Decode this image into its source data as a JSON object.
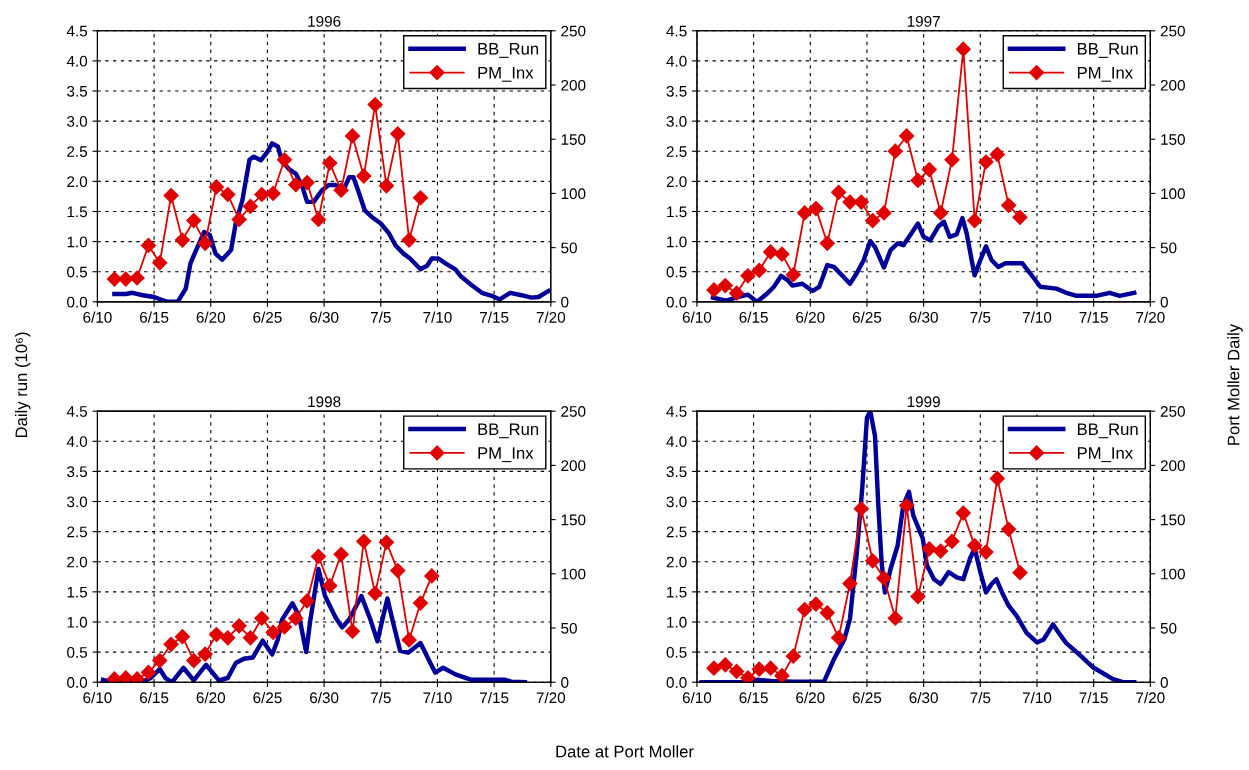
{
  "chart_data": [
    {
      "type": "line",
      "title": "1996",
      "ylabel": "Daily run (10⁶)",
      "xlim": [
        "1996-06-10",
        "1996-07-20"
      ],
      "xticks": [
        {
          "value": "1996-06-10",
          "label": "6/10"
        },
        {
          "value": "1996-06-15",
          "label": "6/15"
        },
        {
          "value": "1996-06-20",
          "label": "6/20"
        },
        {
          "value": "1996-06-25",
          "label": "6/25"
        },
        {
          "value": "1996-06-30",
          "label": "6/30"
        },
        {
          "value": "1996-07-05",
          "label": "7/5"
        },
        {
          "value": "1996-07-10",
          "label": "7/10"
        },
        {
          "value": "1996-07-15",
          "label": "7/15"
        },
        {
          "value": "1996-07-20",
          "label": "7/20"
        }
      ],
      "ylim": [
        0,
        4.5
      ],
      "yticks": [
        {
          "value": 0,
          "label": "0.0"
        },
        {
          "value": 0.5,
          "label": "0.5"
        },
        {
          "value": 1,
          "label": "1.0"
        },
        {
          "value": 1.5,
          "label": "1.5"
        },
        {
          "value": 2,
          "label": "2.0"
        },
        {
          "value": 2.5,
          "label": "2.5"
        },
        {
          "value": 3,
          "label": "3.0"
        },
        {
          "value": 3.5,
          "label": "3.5"
        },
        {
          "value": 4,
          "label": "4.0"
        },
        {
          "value": 4.5,
          "label": "4.5"
        }
      ],
      "y2lim": [
        0,
        250
      ],
      "y2ticks": [
        0,
        50,
        100,
        150,
        200,
        250
      ],
      "grid": true,
      "legend": "top right",
      "series": [
        {
          "name": "BB_Run",
          "color": "#000099",
          "marker": "none",
          "x": [
            "1996-06-11T12:00",
            "1996-06-12T12:00",
            "1996-06-13T02:00",
            "1996-06-14",
            "1996-06-15",
            "1996-06-15T17:00",
            "1996-06-16T05:00",
            "1996-06-17T02:00",
            "1996-06-17T19:00",
            "1996-06-18T05:00",
            "1996-06-18T17:00",
            "1996-06-19T10:00",
            "1996-06-19T22:00",
            "1996-06-20T10:00",
            "1996-06-21",
            "1996-06-21T19:00",
            "1996-06-22T05:00",
            "1996-06-22T19:00",
            "1996-06-23T10:00",
            "1996-06-23T19:00",
            "1996-06-24T10:00",
            "1996-06-25",
            "1996-06-25T10:00",
            "1996-06-25T22:00",
            "1996-06-26T07:00",
            "1996-06-26T22:00",
            "1996-06-27T12:00",
            "1996-06-28T02:00",
            "1996-06-28T12:00",
            "1996-06-29T02:00",
            "1996-06-29T19:00",
            "1996-06-30T10:00",
            "1996-07-01",
            "1996-07-01T17:00",
            "1996-07-02T05:00",
            "1996-07-02T14:00",
            "1996-07-03",
            "1996-07-03T14:00",
            "1996-07-04T05:00",
            "1996-07-05",
            "1996-07-05T17:00",
            "1996-07-06T07:00",
            "1996-07-07",
            "1996-07-07T14:00",
            "1996-07-08T12:00",
            "1996-07-09T02:00",
            "1996-07-09T12:00",
            "1996-07-10T02:00",
            "1996-07-10T17:00",
            "1996-07-11T14:00",
            "1996-07-12T02:00",
            "1996-07-13",
            "1996-07-13T22:00",
            "1996-07-14T19:00",
            "1996-07-15T12:00",
            "1996-07-16T10:00",
            "1996-07-17T10:00",
            "1996-07-18T07:00",
            "1996-07-18T22:00",
            "1996-07-19T19:00"
          ],
          "values": [
            0.13,
            0.13,
            0.15,
            0.11,
            0.08,
            0.03,
            0.0,
            0.0,
            0.22,
            0.64,
            0.86,
            1.16,
            1.11,
            0.8,
            0.7,
            0.86,
            1.31,
            1.69,
            2.36,
            2.41,
            2.35,
            2.49,
            2.63,
            2.58,
            2.33,
            2.2,
            2.13,
            1.91,
            1.66,
            1.66,
            1.85,
            1.94,
            1.94,
            1.85,
            2.07,
            2.07,
            1.85,
            1.52,
            1.41,
            1.3,
            1.14,
            0.94,
            0.8,
            0.72,
            0.54,
            0.6,
            0.72,
            0.72,
            0.64,
            0.54,
            0.42,
            0.28,
            0.15,
            0.1,
            0.04,
            0.15,
            0.11,
            0.07,
            0.08,
            0.18
          ]
        },
        {
          "name": "PM_Inx",
          "color": "#e00000",
          "marker": "diamond",
          "axis": "y2",
          "x": [
            "1996-06-11T12:00",
            "1996-06-12T12:00",
            "1996-06-13T12:00",
            "1996-06-14T12:00",
            "1996-06-15T12:00",
            "1996-06-16T12:00",
            "1996-06-17T12:00",
            "1996-06-18T12:00",
            "1996-06-19T12:00",
            "1996-06-20T12:00",
            "1996-06-21T12:00",
            "1996-06-22T12:00",
            "1996-06-23T12:00",
            "1996-06-24T12:00",
            "1996-06-25T12:00",
            "1996-06-26T12:00",
            "1996-06-27T12:00",
            "1996-06-28T12:00",
            "1996-06-29T12:00",
            "1996-06-30T12:00",
            "1996-07-01T12:00",
            "1996-07-02T12:00",
            "1996-07-03T12:00",
            "1996-07-04T12:00",
            "1996-07-05T12:00",
            "1996-07-06T12:00",
            "1996-07-07T12:00",
            "1996-07-08T12:00"
          ],
          "values": [
            21,
            21,
            22,
            52,
            36,
            98,
            57,
            75,
            54,
            106,
            99,
            76,
            88,
            99,
            100,
            131,
            108,
            110,
            76,
            128,
            103,
            153,
            116,
            182,
            107,
            155,
            57,
            96
          ]
        }
      ]
    },
    {
      "type": "line",
      "title": "1997",
      "y2label": "Port Moller Daily",
      "xlim": [
        "1997-06-10",
        "1997-07-20"
      ],
      "xticks": [
        {
          "value": "1997-06-10",
          "label": "6/10"
        },
        {
          "value": "1997-06-15",
          "label": "6/15"
        },
        {
          "value": "1997-06-20",
          "label": "6/20"
        },
        {
          "value": "1997-06-25",
          "label": "6/25"
        },
        {
          "value": "1997-06-30",
          "label": "6/30"
        },
        {
          "value": "1997-07-05",
          "label": "7/5"
        },
        {
          "value": "1997-07-10",
          "label": "7/10"
        },
        {
          "value": "1997-07-15",
          "label": "7/15"
        },
        {
          "value": "1997-07-20",
          "label": "7/20"
        }
      ],
      "ylim": [
        0,
        4.5
      ],
      "yticks": [
        {
          "value": 0,
          "label": "0.0"
        },
        {
          "value": 0.5,
          "label": "0.5"
        },
        {
          "value": 1,
          "label": "1.0"
        },
        {
          "value": 1.5,
          "label": "1.5"
        },
        {
          "value": 2,
          "label": "2.0"
        },
        {
          "value": 2.5,
          "label": "2.5"
        },
        {
          "value": 3,
          "label": "3.0"
        },
        {
          "value": 3.5,
          "label": "3.5"
        },
        {
          "value": 4,
          "label": "4.0"
        },
        {
          "value": 4.5,
          "label": "4.5"
        }
      ],
      "y2lim": [
        0,
        250
      ],
      "y2ticks": [
        0,
        50,
        100,
        150,
        200,
        250
      ],
      "grid": true,
      "legend": "top right",
      "series": [
        {
          "name": "BB_Run",
          "color": "#000099",
          "marker": "none",
          "x": [
            "1997-06-11T10:00",
            "1997-06-12T14:00",
            "1997-06-13T14:00",
            "1997-06-14T12:00",
            "1997-06-15T07:00",
            "1997-06-16T05:00",
            "1997-06-16T19:00",
            "1997-06-17T10:00",
            "1997-06-18",
            "1997-06-18T10:00",
            "1997-06-19T07:00",
            "1997-06-20T05:00",
            "1997-06-20T19:00",
            "1997-06-21T12:00",
            "1997-06-22T02:00",
            "1997-06-22T19:00",
            "1997-06-23T12:00",
            "1997-06-24T02:00",
            "1997-06-24T17:00",
            "1997-06-25T07:00",
            "1997-06-25T17:00",
            "1997-06-26T12:00",
            "1997-06-27T02:00",
            "1997-06-27T17:00",
            "1997-06-28T05:00",
            "1997-06-29",
            "1997-06-29T12:00",
            "1997-06-30",
            "1997-06-30T14:00",
            "1997-07-01T07:00",
            "1997-07-01T19:00",
            "1997-07-02T07:00",
            "1997-07-02T22:00",
            "1997-07-03T10:00",
            "1997-07-03T19:00",
            "1997-07-04T07:00",
            "1997-07-04T12:00",
            "1997-07-05",
            "1997-07-05T12:00",
            "1997-07-06",
            "1997-07-06T14:00",
            "1997-07-07T05:00",
            "1997-07-08T17:00",
            "1997-07-09T10:00",
            "1997-07-10T07:00",
            "1997-07-11T17:00",
            "1997-07-12T14:00",
            "1997-07-13T12:00",
            "1997-07-15T05:00",
            "1997-07-16T10:00",
            "1997-07-17T07:00",
            "1997-07-18T14:00"
          ],
          "values": [
            0.07,
            0.02,
            0.08,
            0.12,
            0.0,
            0.14,
            0.25,
            0.43,
            0.36,
            0.27,
            0.3,
            0.18,
            0.25,
            0.61,
            0.58,
            0.44,
            0.3,
            0.47,
            0.69,
            1.01,
            0.91,
            0.57,
            0.86,
            0.97,
            0.94,
            1.16,
            1.3,
            1.08,
            1.02,
            1.25,
            1.33,
            1.08,
            1.12,
            1.39,
            1.14,
            0.64,
            0.44,
            0.69,
            0.92,
            0.69,
            0.58,
            0.64,
            0.64,
            0.47,
            0.25,
            0.22,
            0.15,
            0.1,
            0.1,
            0.15,
            0.1,
            0.15
          ]
        },
        {
          "name": "PM_Inx",
          "color": "#e00000",
          "marker": "diamond",
          "axis": "y2",
          "x": [
            "1997-06-11T12:00",
            "1997-06-12T12:00",
            "1997-06-13T12:00",
            "1997-06-14T12:00",
            "1997-06-15T12:00",
            "1997-06-16T12:00",
            "1997-06-17T12:00",
            "1997-06-18T12:00",
            "1997-06-19T12:00",
            "1997-06-20T12:00",
            "1997-06-21T12:00",
            "1997-06-22T12:00",
            "1997-06-23T12:00",
            "1997-06-24T12:00",
            "1997-06-25T12:00",
            "1997-06-26T12:00",
            "1997-06-27T12:00",
            "1997-06-28T12:00",
            "1997-06-29T12:00",
            "1997-06-30T12:00",
            "1997-07-01T12:00",
            "1997-07-02T12:00",
            "1997-07-03T12:00",
            "1997-07-04T12:00",
            "1997-07-05T12:00",
            "1997-07-06T12:00",
            "1997-07-07T12:00",
            "1997-07-08T12:00"
          ],
          "values": [
            11,
            15,
            8,
            24,
            29,
            46,
            44,
            25,
            82,
            86,
            54,
            101,
            92,
            92,
            75,
            82,
            139,
            153,
            112,
            122,
            82,
            131,
            233,
            75,
            129,
            136,
            89,
            78
          ]
        }
      ]
    },
    {
      "type": "line",
      "title": "1998",
      "xlim": [
        "1998-06-10",
        "1998-07-20"
      ],
      "xticks": [
        {
          "value": "1998-06-10",
          "label": "6/10"
        },
        {
          "value": "1998-06-15",
          "label": "6/15"
        },
        {
          "value": "1998-06-20",
          "label": "6/20"
        },
        {
          "value": "1998-06-25",
          "label": "6/25"
        },
        {
          "value": "1998-06-30",
          "label": "6/30"
        },
        {
          "value": "1998-07-05",
          "label": "7/5"
        },
        {
          "value": "1998-07-10",
          "label": "7/10"
        },
        {
          "value": "1998-07-15",
          "label": "7/15"
        },
        {
          "value": "1998-07-20",
          "label": "7/20"
        }
      ],
      "ylim": [
        0,
        4.5
      ],
      "yticks": [
        {
          "value": 0,
          "label": "0.0"
        },
        {
          "value": 0.5,
          "label": "0.5"
        },
        {
          "value": 1,
          "label": "1.0"
        },
        {
          "value": 1.5,
          "label": "1.5"
        },
        {
          "value": 2,
          "label": "2.0"
        },
        {
          "value": 2.5,
          "label": "2.5"
        },
        {
          "value": 3,
          "label": "3.0"
        },
        {
          "value": 3.5,
          "label": "3.5"
        },
        {
          "value": 4,
          "label": "4.0"
        },
        {
          "value": 4.5,
          "label": "4.5"
        }
      ],
      "y2lim": [
        0,
        250
      ],
      "y2ticks": [
        0,
        50,
        100,
        150,
        200,
        250
      ],
      "grid": true,
      "legend": "top right",
      "series": [
        {
          "name": "BB_Run",
          "color": "#000099",
          "marker": "none",
          "x": [
            "1998-06-10T12:00",
            "1998-06-11T07:00",
            "1998-06-12T19:00",
            "1998-06-14",
            "1998-06-14T17:00",
            "1998-06-15T12:00",
            "1998-06-16",
            "1998-06-16T14:00",
            "1998-06-17T14:00",
            "1998-06-18T12:00",
            "1998-06-19T14:00",
            "1998-06-20T17:00",
            "1998-06-21T12:00",
            "1998-06-22T05:00",
            "1998-06-22T22:00",
            "1998-06-23T17:00",
            "1998-06-24T14:00",
            "1998-06-25T10:00",
            "1998-06-25T22:00",
            "1998-06-26T07:00",
            "1998-06-27T05:00",
            "1998-06-27T19:00",
            "1998-06-28T10:00",
            "1998-06-28T19:00",
            "1998-06-29T12:00",
            "1998-06-30T02:00",
            "1998-07-01",
            "1998-07-01T14:00",
            "1998-07-02T05:00",
            "1998-07-03T07:00",
            "1998-07-04T02:00",
            "1998-07-04T17:00",
            "1998-07-05T02:00",
            "1998-07-05T14:00",
            "1998-07-06T02:00",
            "1998-07-06T17:00",
            "1998-07-07T10:00",
            "1998-07-08T12:00",
            "1998-07-09T05:00",
            "1998-07-09T19:00",
            "1998-07-10T12:00",
            "1998-07-11T14:00",
            "1998-07-13",
            "1998-07-16",
            "1998-07-16T12:00",
            "1998-07-17T17:00"
          ],
          "values": [
            0.04,
            0.0,
            0.0,
            0.01,
            0.07,
            0.22,
            0.07,
            0.0,
            0.24,
            0.03,
            0.29,
            0.03,
            0.07,
            0.32,
            0.39,
            0.41,
            0.69,
            0.46,
            0.71,
            1.04,
            1.31,
            1.1,
            0.5,
            1.04,
            1.88,
            1.43,
            1.08,
            0.91,
            1.04,
            1.43,
            1.04,
            0.68,
            0.99,
            1.39,
            0.99,
            0.52,
            0.49,
            0.65,
            0.38,
            0.16,
            0.24,
            0.13,
            0.04,
            0.04,
            0.01,
            0.0
          ]
        },
        {
          "name": "PM_Inx",
          "color": "#e00000",
          "marker": "diamond",
          "axis": "y2",
          "x": [
            "1998-06-11T12:00",
            "1998-06-12T12:00",
            "1998-06-13T12:00",
            "1998-06-14T12:00",
            "1998-06-15T12:00",
            "1998-06-16T12:00",
            "1998-06-17T12:00",
            "1998-06-18T12:00",
            "1998-06-19T12:00",
            "1998-06-20T12:00",
            "1998-06-21T12:00",
            "1998-06-22T12:00",
            "1998-06-23T12:00",
            "1998-06-24T12:00",
            "1998-06-25T12:00",
            "1998-06-26T12:00",
            "1998-06-27T12:00",
            "1998-06-28T12:00",
            "1998-06-29T12:00",
            "1998-06-30T12:00",
            "1998-07-01T12:00",
            "1998-07-02T12:00",
            "1998-07-03T12:00",
            "1998-07-04T12:00",
            "1998-07-05T12:00",
            "1998-07-06T12:00",
            "1998-07-07T12:00",
            "1998-07-08T12:00",
            "1998-07-09T12:00"
          ],
          "values": [
            3,
            4,
            3,
            9,
            20,
            35,
            42,
            20,
            26,
            44,
            41,
            52,
            41,
            59,
            46,
            51,
            59,
            75,
            116,
            89,
            118,
            47,
            130,
            82,
            129,
            103,
            39,
            73,
            98
          ]
        }
      ]
    },
    {
      "type": "line",
      "title": "1999",
      "xlabel": "Date at Port Moller",
      "xlim": [
        "1999-06-10",
        "1999-07-20"
      ],
      "xticks": [
        {
          "value": "1999-06-10",
          "label": "6/10"
        },
        {
          "value": "1999-06-15",
          "label": "6/15"
        },
        {
          "value": "1999-06-20",
          "label": "6/20"
        },
        {
          "value": "1999-06-25",
          "label": "6/25"
        },
        {
          "value": "1999-06-30",
          "label": "6/30"
        },
        {
          "value": "1999-07-05",
          "label": "7/5"
        },
        {
          "value": "1999-07-10",
          "label": "7/10"
        },
        {
          "value": "1999-07-15",
          "label": "7/15"
        },
        {
          "value": "1999-07-20",
          "label": "7/20"
        }
      ],
      "ylim": [
        0,
        4.5
      ],
      "yticks": [
        {
          "value": 0,
          "label": "0.0"
        },
        {
          "value": 0.5,
          "label": "0.5"
        },
        {
          "value": 1,
          "label": "1.0"
        },
        {
          "value": 1.5,
          "label": "1.5"
        },
        {
          "value": 2,
          "label": "2.0"
        },
        {
          "value": 2.5,
          "label": "2.5"
        },
        {
          "value": 3,
          "label": "3.0"
        },
        {
          "value": 3.5,
          "label": "3.5"
        },
        {
          "value": 4,
          "label": "4.0"
        },
        {
          "value": 4.5,
          "label": "4.5"
        }
      ],
      "y2lim": [
        0,
        250
      ],
      "y2ticks": [
        0,
        50,
        100,
        150,
        200,
        250
      ],
      "grid": true,
      "legend": "top right",
      "series": [
        {
          "name": "BB_Run",
          "color": "#000099",
          "marker": "none",
          "x": [
            "1999-06-10T10:00",
            "1999-06-14T05:00",
            "1999-06-15T07:00",
            "1999-06-16T12:00",
            "1999-06-18T14:00",
            "1999-06-20T07:00",
            "1999-06-21T05:00",
            "1999-06-22T02:00",
            "1999-06-23",
            "1999-06-23T12:00",
            "1999-06-24T02:00",
            "1999-06-24T14:00",
            "1999-06-25",
            "1999-06-25T07:00",
            "1999-06-25T17:00",
            "1999-06-26",
            "1999-06-26T07:00",
            "1999-06-26T14:00",
            "1999-06-27T02:00",
            "1999-06-27T17:00",
            "1999-06-28T05:00",
            "1999-06-28T17:00",
            "1999-06-29T02:00",
            "1999-06-29T22:00",
            "1999-06-30T07:00",
            "1999-06-30T22:00",
            "1999-07-01T12:00",
            "1999-07-02T05:00",
            "1999-07-02T22:00",
            "1999-07-03T12:00",
            "1999-07-04T02:00",
            "1999-07-04T12:00",
            "1999-07-05",
            "1999-07-05T12:00",
            "1999-07-06",
            "1999-07-06T10:00",
            "1999-07-06T22:00",
            "1999-07-07T12:00",
            "1999-07-08T05:00",
            "1999-07-09T02:00",
            "1999-07-10",
            "1999-07-10T14:00",
            "1999-07-11T10:00",
            "1999-07-11T22:00",
            "1999-07-12T14:00",
            "1999-07-13T12:00",
            "1999-07-15",
            "1999-07-16T17:00",
            "1999-07-17T14:00",
            "1999-07-18T14:00"
          ],
          "values": [
            0.0,
            0.0,
            0.04,
            0.02,
            0.01,
            0.01,
            0.01,
            0.38,
            0.71,
            1.05,
            2.11,
            3.22,
            4.39,
            4.5,
            4.09,
            2.94,
            1.99,
            1.49,
            1.88,
            2.27,
            2.94,
            3.16,
            2.77,
            2.39,
            1.94,
            1.71,
            1.63,
            1.83,
            1.74,
            1.71,
            2.05,
            2.22,
            1.83,
            1.49,
            1.63,
            1.71,
            1.49,
            1.27,
            1.1,
            0.82,
            0.66,
            0.71,
            0.96,
            0.82,
            0.65,
            0.5,
            0.24,
            0.05,
            0.0,
            0.0
          ]
        },
        {
          "name": "PM_Inx",
          "color": "#e00000",
          "marker": "diamond",
          "axis": "y2",
          "x": [
            "1999-06-11T12:00",
            "1999-06-12T12:00",
            "1999-06-13T12:00",
            "1999-06-14T12:00",
            "1999-06-15T12:00",
            "1999-06-16T12:00",
            "1999-06-17T12:00",
            "1999-06-18T12:00",
            "1999-06-19T12:00",
            "1999-06-20T12:00",
            "1999-06-21T12:00",
            "1999-06-22T12:00",
            "1999-06-23T12:00",
            "1999-06-24T12:00",
            "1999-06-25T12:00",
            "1999-06-26T12:00",
            "1999-06-27T12:00",
            "1999-06-28T12:00",
            "1999-06-29T12:00",
            "1999-06-30T12:00",
            "1999-07-01T12:00",
            "1999-07-02T12:00",
            "1999-07-03T12:00",
            "1999-07-04T12:00",
            "1999-07-05T12:00",
            "1999-07-06T12:00",
            "1999-07-07T12:00",
            "1999-07-08T12:00"
          ],
          "values": [
            13,
            16,
            10,
            4,
            12,
            13,
            6,
            24,
            67,
            72,
            64,
            41,
            91,
            160,
            112,
            96,
            59,
            163,
            79,
            123,
            121,
            130,
            156,
            126,
            120,
            188,
            141,
            101
          ]
        }
      ]
    }
  ]
}
